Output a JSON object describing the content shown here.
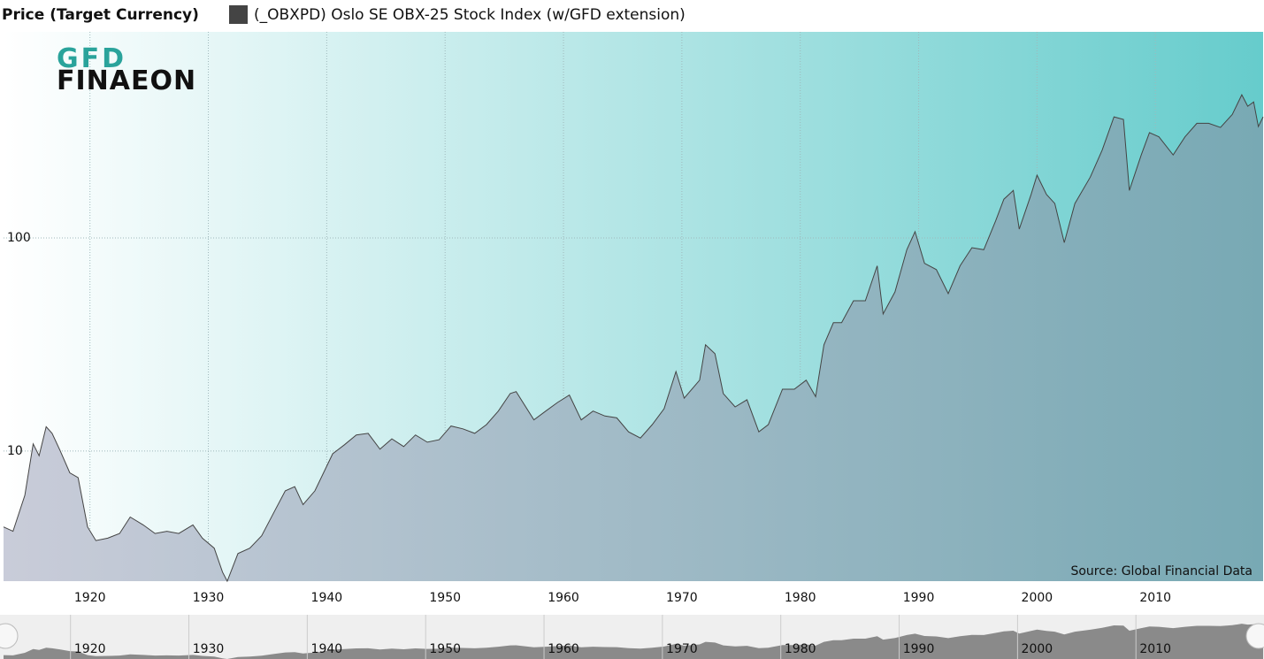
{
  "chart_data": {
    "type": "area",
    "title": "Price (Target Currency)",
    "source": "Source: Global Financial Data",
    "logo": {
      "top": "GFD",
      "bottom": "FINAEON"
    },
    "log_scale": true,
    "grid": true,
    "x": [
      1912.7,
      1913.5,
      1914.5,
      1915.2,
      1915.7,
      1916.3,
      1916.8,
      1917.5,
      1918.3,
      1919,
      1919.8,
      1920.5,
      1921.5,
      1922.5,
      1923.4,
      1924.5,
      1925.5,
      1926.5,
      1927.5,
      1928.7,
      1929.5,
      1930.5,
      1931.2,
      1931.6,
      1932.5,
      1933.5,
      1934.5,
      1935.5,
      1936.5,
      1937.3,
      1938,
      1939,
      1940.5,
      1941.5,
      1942.5,
      1943.5,
      1944.5,
      1945.5,
      1946.5,
      1947.5,
      1948.5,
      1949.5,
      1950.5,
      1951.5,
      1952.5,
      1953.5,
      1954.5,
      1955.5,
      1956,
      1957.5,
      1958.5,
      1959.5,
      1960.5,
      1961.5,
      1962.5,
      1963.5,
      1964.5,
      1965.5,
      1966.5,
      1967.5,
      1968.5,
      1969.5,
      1970.2,
      1971.5,
      1972,
      1972.8,
      1973.5,
      1974.5,
      1975.5,
      1976.5,
      1977.3,
      1978.5,
      1979.5,
      1980.5,
      1981.3,
      1982,
      1982.8,
      1983.5,
      1984.5,
      1985.5,
      1986.5,
      1987,
      1988,
      1989,
      1989.7,
      1990.5,
      1991.5,
      1992.5,
      1993.5,
      1994.5,
      1995.5,
      1996.5,
      1997.2,
      1998,
      1998.5,
      1999.5,
      2000,
      2000.8,
      2001.5,
      2002.3,
      2003.2,
      2004.5,
      2005.5,
      2006.5,
      2007.3,
      2007.8,
      2008.8,
      2009.5,
      2010.3,
      2011.5,
      2012.5,
      2013.5,
      2014.5,
      2015.5,
      2016.5,
      2017.3,
      2017.8,
      2018.3,
      2018.7,
      2019.1
    ],
    "series": [
      {
        "name": "(_OBXPD) Oslo SE OBX-25 Stock Index (w/GFD extension)",
        "color": "#444444",
        "values": [
          4.4,
          4.2,
          6.2,
          10.8,
          9.5,
          13,
          12.1,
          10,
          7.9,
          7.5,
          4.4,
          3.8,
          3.9,
          4.1,
          4.9,
          4.5,
          4.1,
          4.2,
          4.1,
          4.5,
          3.9,
          3.5,
          2.7,
          2.45,
          3.3,
          3.5,
          4.0,
          5.1,
          6.5,
          6.8,
          5.6,
          6.5,
          9.7,
          10.7,
          11.9,
          12.1,
          10.2,
          11.4,
          10.5,
          11.9,
          11,
          11.3,
          13.1,
          12.7,
          12.1,
          13.3,
          15.4,
          18.6,
          19,
          14,
          15.4,
          16.9,
          18.3,
          14,
          15.4,
          14.6,
          14.3,
          12.3,
          11.5,
          13.3,
          15.8,
          23.6,
          17.7,
          21.5,
          31.5,
          28.6,
          18.6,
          16.1,
          17.4,
          12.3,
          13.3,
          19.5,
          19.5,
          21.5,
          18,
          31.5,
          40,
          40,
          50.7,
          50.7,
          74,
          44,
          55.8,
          88,
          107,
          76,
          71,
          54.8,
          74,
          90,
          88,
          120,
          152,
          167,
          110,
          160,
          197,
          160,
          145,
          95,
          145,
          193,
          258,
          370,
          360,
          167,
          245,
          312,
          298,
          245,
          298,
          345,
          345,
          330,
          380,
          470,
          415,
          435,
          333,
          370
        ]
      }
    ],
    "xlim": [
      1912.7,
      2019.1
    ],
    "ylim": [
      2.45,
      927
    ],
    "xticks": [
      1920,
      1930,
      1940,
      1950,
      1960,
      1970,
      1980,
      1990,
      2000,
      2010
    ],
    "yticks": [
      10,
      100
    ]
  }
}
